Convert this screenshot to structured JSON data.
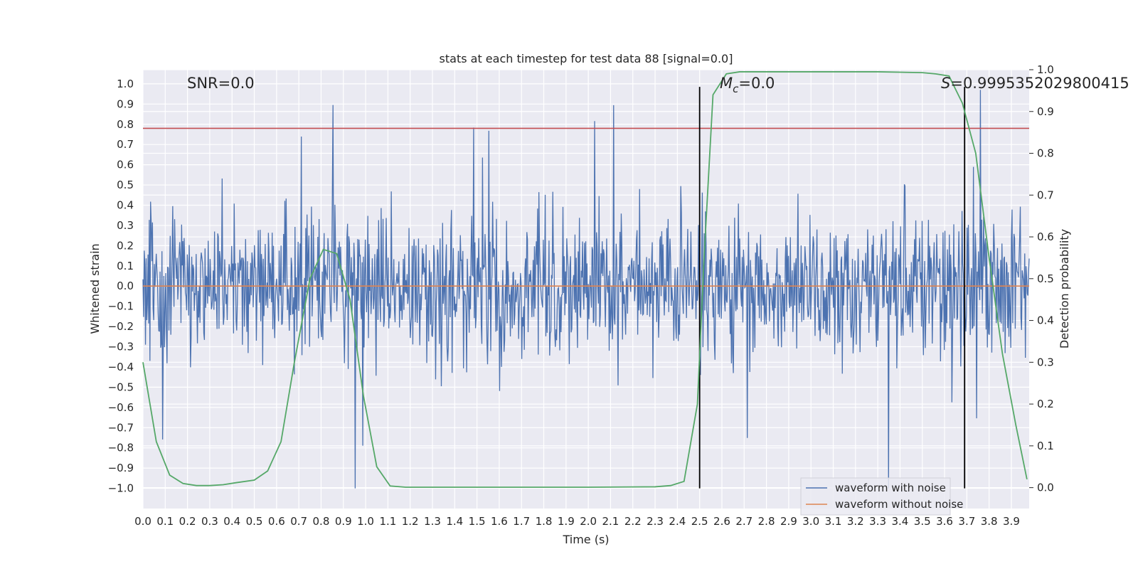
{
  "chart_data": {
    "type": "line",
    "title": "stats at each timestep for test data 88 [signal=0.0]",
    "xlabel": "Time (s)",
    "ylabel": "Whitened strain",
    "y2label": "Detection probability",
    "xlim": [
      0.0,
      3.98
    ],
    "ylim": [
      -1.1,
      1.07
    ],
    "y2lim": [
      -0.05,
      1.0
    ],
    "xticks": [
      "0.0",
      "0.1",
      "0.2",
      "0.3",
      "0.4",
      "0.5",
      "0.6",
      "0.7",
      "0.8",
      "0.9",
      "1.0",
      "1.1",
      "1.2",
      "1.3",
      "1.4",
      "1.5",
      "1.6",
      "1.7",
      "1.8",
      "1.9",
      "2.0",
      "2.1",
      "2.2",
      "2.3",
      "2.4",
      "2.5",
      "2.6",
      "2.7",
      "2.8",
      "2.9",
      "3.0",
      "3.1",
      "3.2",
      "3.3",
      "3.4",
      "3.5",
      "3.6",
      "3.7",
      "3.8",
      "3.9"
    ],
    "yticks": [
      "1.0",
      "0.9",
      "0.8",
      "0.7",
      "0.6",
      "0.5",
      "0.4",
      "0.3",
      "0.2",
      "0.1",
      "0.0",
      "−0.1",
      "−0.2",
      "−0.3",
      "−0.4",
      "−0.5",
      "−0.6",
      "−0.7",
      "−0.8",
      "−0.9",
      "−1.0"
    ],
    "y2ticks": [
      "0.0",
      "0.1",
      "0.2",
      "0.3",
      "0.4",
      "0.5",
      "0.6",
      "0.7",
      "0.8",
      "0.9",
      "1.0"
    ],
    "grid": true,
    "legend_position": "lower-right",
    "series": [
      {
        "name": "waveform with noise",
        "color": "#4c72b0",
        "kind": "noise",
        "seed": 88,
        "sigma": 0.17,
        "min": -1.0,
        "max": 0.97,
        "samples": 1400
      },
      {
        "name": "waveform without noise",
        "color": "#dd8452",
        "x": [
          0.0,
          3.98
        ],
        "y": [
          0.0,
          0.0
        ]
      }
    ],
    "detection_probability": {
      "color": "#55a868",
      "x": [
        0.0,
        0.06,
        0.12,
        0.18,
        0.24,
        0.3,
        0.36,
        0.42,
        0.5,
        0.56,
        0.62,
        0.68,
        0.75,
        0.81,
        0.87,
        0.93,
        0.99,
        1.05,
        1.11,
        1.18,
        1.5,
        2.0,
        2.3,
        2.37,
        2.43,
        2.49,
        2.52,
        2.56,
        2.62,
        2.68,
        2.74,
        3.0,
        3.3,
        3.5,
        3.56,
        3.62,
        3.68,
        3.74,
        3.8,
        3.86,
        3.92,
        3.97
      ],
      "y": [
        0.3,
        0.11,
        0.03,
        0.01,
        0.005,
        0.005,
        0.007,
        0.012,
        0.018,
        0.04,
        0.11,
        0.3,
        0.5,
        0.57,
        0.56,
        0.45,
        0.22,
        0.05,
        0.004,
        0.001,
        0.001,
        0.001,
        0.002,
        0.005,
        0.015,
        0.2,
        0.55,
        0.94,
        0.99,
        0.995,
        0.995,
        0.995,
        0.995,
        0.993,
        0.99,
        0.985,
        0.92,
        0.8,
        0.55,
        0.32,
        0.15,
        0.02
      ]
    },
    "threshold": {
      "value": 0.78,
      "color": "#c44e52"
    },
    "vlines": [
      2.5,
      3.69
    ],
    "annotations": [
      {
        "text": "SNR=0.0",
        "x": 0.2,
        "y": 1.0
      },
      {
        "text": "=0.0",
        "symbol": "M",
        "sub": "c",
        "x": 2.6,
        "y": 1.0
      },
      {
        "text": "=0.9995352029800415",
        "symbol": "S",
        "sub": "",
        "x": 3.6,
        "y": 1.0
      }
    ]
  }
}
